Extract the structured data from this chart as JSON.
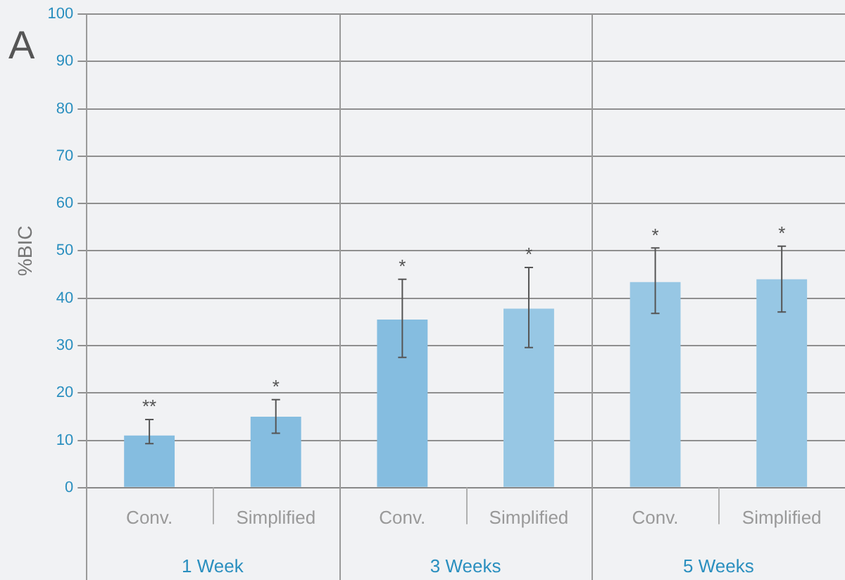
{
  "chart_data": {
    "type": "bar",
    "ylabel": "%BIC",
    "categories": [
      "Conv.",
      "Simplified",
      "Conv.",
      "Simplified",
      "Conv.",
      "Simplified"
    ],
    "values": [
      11,
      15,
      35.5,
      37.8,
      43.4,
      44
    ],
    "colors": [
      "#85bde0",
      "#85bde0",
      "#85bde0",
      "#97c7e4",
      "#97c7e4",
      "#97c7e4"
    ],
    "errors": [
      [
        9.3,
        14.4
      ],
      [
        11.5,
        18.6
      ],
      [
        27.5,
        44
      ],
      [
        29.6,
        46.5
      ],
      [
        36.8,
        50.6
      ],
      [
        37.1,
        51
      ]
    ],
    "value_labels": [
      "**",
      "*",
      "*",
      "*",
      "*",
      "*"
    ],
    "annotations": [
      "A",
      "1 Week",
      "3 Weeks",
      "5 Weeks"
    ],
    "ylim": [
      0,
      100
    ],
    "yticks": [
      0,
      10,
      20,
      30,
      40,
      50,
      60,
      70,
      80,
      90,
      100
    ],
    "grid": "y",
    "legend": false
  }
}
